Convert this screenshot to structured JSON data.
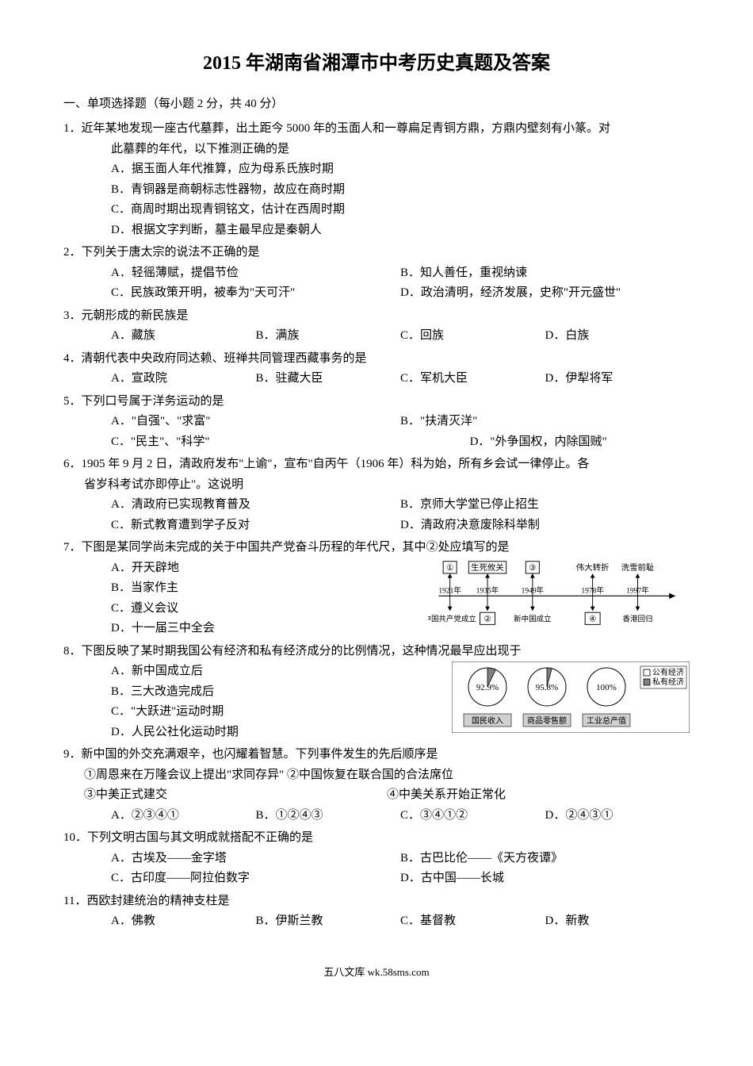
{
  "title": "2015 年湖南省湘潭市中考历史真题及答案",
  "section1": "一、单项选择题（每小题 2 分，共 40 分）",
  "q1": {
    "num": "1．",
    "stem": "近年某地发现一座古代墓葬，出土距今 5000 年的玉面人和一尊扁足青铜方鼎，方鼎内壁刻有小篆。对",
    "stem2": "此墓葬的年代，以下推测正确的是",
    "A": "A．据玉面人年代推算，应为母系氏族时期",
    "B": "B．青铜器是商朝标志性器物，故应在商时期",
    "C": "C．商周时期出现青铜铭文，估计在西周时期",
    "D": "D．根据文字判断，墓主最早应是秦朝人"
  },
  "q2": {
    "num": "2．",
    "stem": "下列关于唐太宗的说法不正确的是",
    "A": "A．轻徭薄赋，提倡节俭",
    "B": "B．知人善任，重视纳谏",
    "C": "C．民族政策开明，被奉为\"天可汗\"",
    "D": "D．政治清明，经济发展，史称\"开元盛世\""
  },
  "q3": {
    "num": "3．",
    "stem": "元朝形成的新民族是",
    "A": "A．藏族",
    "B": "B．满族",
    "C": "C．回族",
    "D": "D．白族"
  },
  "q4": {
    "num": "4．",
    "stem": "清朝代表中央政府同达赖、班禅共同管理西藏事务的是",
    "A": "A．宣政院",
    "B": "B．驻藏大臣",
    "C": "C．军机大臣",
    "D": "D．伊犁将军"
  },
  "q5": {
    "num": "5．",
    "stem": "下列口号属于洋务运动的是",
    "A": "A．\"自强\"、\"求富\"",
    "B": "B．\"扶清灭洋\"",
    "C": "C．\"民主\"、\"科学\"",
    "D": "D．\"外争国权，内除国贼\""
  },
  "q6": {
    "num": "6．",
    "stem": "1905 年 9 月 2 日，清政府发布\"上谕\"，宣布\"自丙午（1906 年）科为始，所有乡会试一律停止。各",
    "stem2": "省岁科考试亦即停止\"。这说明",
    "A": "A．清政府已实现教育普及",
    "B": "B．京师大学堂已停止招生",
    "C": "C．新式教育遭到学子反对",
    "D": "D．清政府决意废除科举制"
  },
  "q7": {
    "num": "7．",
    "stem": "下图是某同学尚未完成的关于中国共产党奋斗历程的年代尺，其中②处应填写的是",
    "A": "A．开天辟地",
    "B": "B．当家作主",
    "C": "C．遵义会议",
    "D": "D．十一届三中全会",
    "timeline": {
      "boxes": [
        "①",
        "生死攸关",
        "③",
        "伟大转折",
        "洗雪前耻"
      ],
      "years": [
        "1921年",
        "1935年",
        "1949年",
        "1978年",
        "1997年"
      ],
      "bottom": [
        "中国共产党成立",
        "②",
        "新中国成立",
        "④",
        "香港回归"
      ],
      "box_stroke": "#000000",
      "box_fill": "#ffffff",
      "text_size": 11
    }
  },
  "q8": {
    "num": "8．",
    "stem": "下图反映了某时期我国公有经济和私有经济成分的比例情况，这种情况最早应出现于",
    "A": "A．新中国成立后",
    "B": "B．三大改造完成后",
    "C": "C．\"大跃进\"运动时期",
    "D": "D．人民公社化运动时期",
    "pies": {
      "values": [
        92.9,
        95.8,
        100
      ],
      "labels": [
        "92.9%",
        "95.8%",
        "100%"
      ],
      "captions": [
        "国民收入",
        "商品零售额",
        "工业总产值"
      ],
      "legend": [
        "公有经济",
        "私有经济"
      ],
      "colors": {
        "public": "#ffffff",
        "private": "#808080",
        "stroke": "#000000"
      },
      "caption_box_fill": "#d0d0d0"
    }
  },
  "q9": {
    "num": "9．",
    "stem": "新中国的外交充满艰辛，也闪耀着智慧。下列事件发生的先后顺序是",
    "line1": "①周恩来在万隆会议上提出\"求同存异\" ②中国恢复在联合国的合法席位",
    "line2a": "③中美正式建交",
    "line2b": "④中美关系开始正常化",
    "A": "A．②③④①",
    "B": "B．①②④③",
    "C": "C．③④①②",
    "D": "D．②④③①"
  },
  "q10": {
    "num": "10．",
    "stem": "下列文明古国与其文明成就搭配不正确的是",
    "A": "A．古埃及——金字塔",
    "B": "B．古巴比伦——《天方夜谭》",
    "C": "C．古印度——阿拉伯数字",
    "D": "D．古中国——长城"
  },
  "q11": {
    "num": "11．",
    "stem": "西欧封建统治的精神支柱是",
    "A": "A．佛教",
    "B": "B．伊斯兰教",
    "C": "C．基督教",
    "D": "D．新教"
  },
  "footer": "五八文库 wk.58sms.com"
}
